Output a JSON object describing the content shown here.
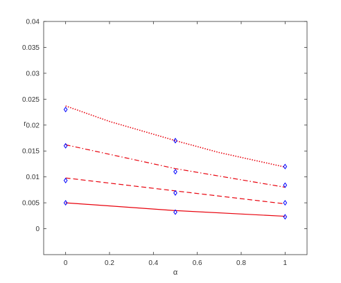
{
  "chart_data": {
    "type": "line",
    "xlabel": "α",
    "ylabel": "r",
    "xlim": [
      -0.1,
      1.1
    ],
    "ylim": [
      -0.005,
      0.04
    ],
    "x_ticks": [
      0,
      0.2,
      0.4,
      0.6,
      0.8,
      1
    ],
    "x_tick_labels": [
      "0",
      "0.2",
      "0.4",
      "0.6",
      "0.8",
      "1"
    ],
    "y_ticks": [
      0,
      0.005,
      0.01,
      0.015,
      0.02,
      0.025,
      0.03,
      0.035,
      0.04
    ],
    "y_tick_labels": [
      "0",
      "0.005",
      "0.01",
      "0.015",
      "0.02",
      "0.025",
      "0.03",
      "0.035",
      "0.04"
    ],
    "grid": false,
    "line_color": "#e8000b",
    "marker_color": "#0000ff",
    "series": [
      {
        "style": "solid",
        "line": {
          "x": [
            0,
            0.5,
            1
          ],
          "y": [
            0.005,
            0.0035,
            0.0024
          ]
        },
        "markers": {
          "x": [
            0,
            0.5,
            1
          ],
          "y": [
            0.005,
            0.0032,
            0.0023
          ]
        }
      },
      {
        "style": "dashed",
        "line": {
          "x": [
            0,
            0.5,
            1
          ],
          "y": [
            0.0098,
            0.0073,
            0.0048
          ]
        },
        "markers": {
          "x": [
            0,
            0.5,
            1
          ],
          "y": [
            0.0093,
            0.0069,
            0.005
          ]
        }
      },
      {
        "style": "dashdot",
        "line": {
          "x": [
            0,
            0.5,
            1
          ],
          "y": [
            0.0162,
            0.0116,
            0.008
          ]
        },
        "markers": {
          "x": [
            0,
            0.5,
            1
          ],
          "y": [
            0.016,
            0.011,
            0.0084
          ]
        }
      },
      {
        "style": "dotted",
        "line": {
          "x": [
            0,
            0.2,
            0.5,
            0.7,
            1
          ],
          "y": [
            0.0237,
            0.0207,
            0.017,
            0.0147,
            0.0119
          ]
        },
        "markers": {
          "x": [
            0,
            0.5,
            1
          ],
          "y": [
            0.023,
            0.017,
            0.012
          ]
        }
      }
    ]
  }
}
